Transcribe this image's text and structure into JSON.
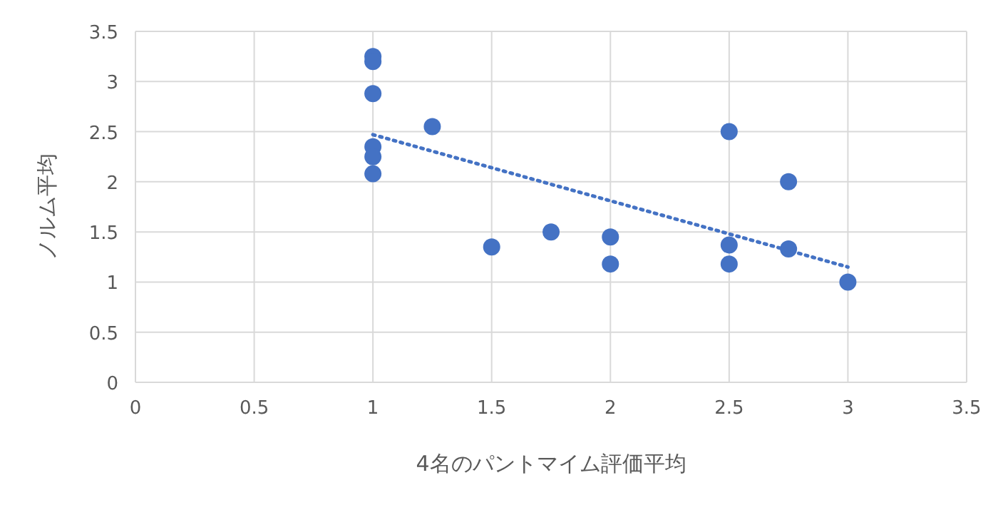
{
  "chart_data": {
    "type": "scatter",
    "xlabel": "4名のパントマイム評価平均",
    "ylabel": "ノルム平均",
    "xlim": [
      0,
      3.5
    ],
    "ylim": [
      0,
      3.5
    ],
    "xticks": [
      0,
      0.5,
      1,
      1.5,
      2,
      2.5,
      3,
      3.5
    ],
    "yticks": [
      0,
      0.5,
      1,
      1.5,
      2,
      2.5,
      3,
      3.5
    ],
    "grid": true,
    "series": [
      {
        "color": "#4472c4",
        "marker": "circle",
        "x": [
          1,
          1,
          1,
          1,
          1,
          1,
          1.25,
          1.5,
          1.75,
          2,
          2,
          2.5,
          2.5,
          2.5,
          2.75,
          2.75,
          3
        ],
        "values": [
          3.25,
          3.2,
          2.88,
          2.35,
          2.25,
          2.08,
          2.55,
          1.35,
          1.5,
          1.45,
          1.18,
          2.5,
          1.37,
          1.18,
          2.0,
          1.33,
          1.0
        ]
      },
      {
        "type": "line",
        "color": "#4472c4",
        "line_style": "dotted",
        "x": [
          1,
          3
        ],
        "values": [
          2.47,
          1.15
        ]
      }
    ]
  }
}
